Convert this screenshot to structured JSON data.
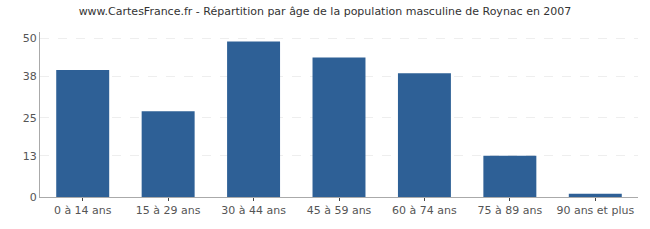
{
  "chart_data": {
    "type": "bar",
    "title": "www.CartesFrance.fr - Répartition par âge de la population masculine de Roynac en 2007",
    "categories": [
      "0 à 14 ans",
      "15 à 29 ans",
      "30 à 44 ans",
      "45 à 59 ans",
      "60 à 74 ans",
      "75 à 89 ans",
      "90 ans et plus"
    ],
    "values": [
      40,
      27,
      49,
      44,
      39,
      13,
      1
    ],
    "color": "#2e6096",
    "ylim": [
      0,
      52
    ],
    "yticks": [
      0,
      13,
      25,
      38,
      50
    ],
    "grid": true
  }
}
